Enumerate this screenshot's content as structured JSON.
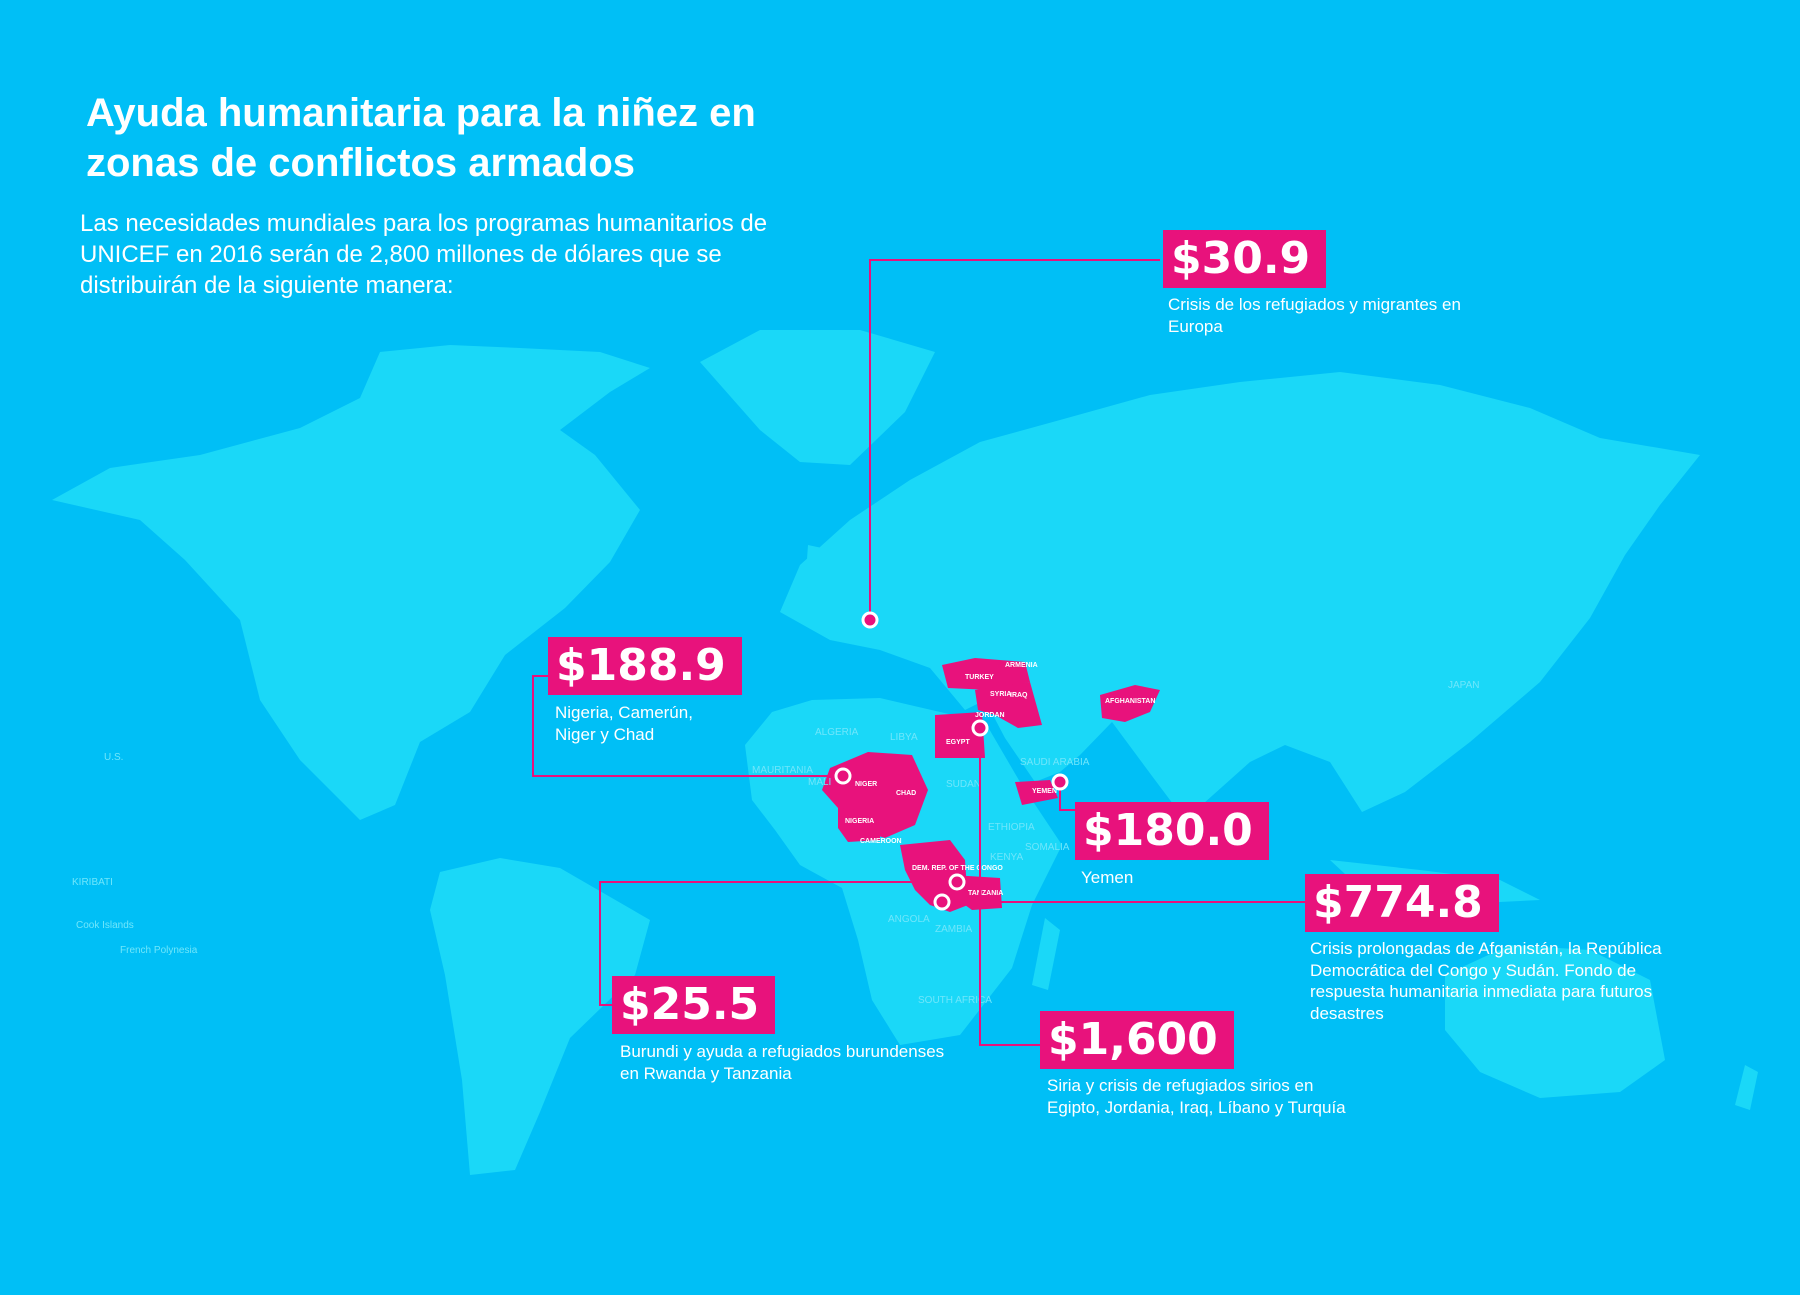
{
  "title": "Ayuda humanitaria para la niñez en zonas de conflictos armados",
  "subtitle": "Las necesidades mundiales para los programas humanitarios de UNICEF en 2016 serán de 2,800 millones de dólares que se distribuirán de la siguiente manera:",
  "colors": {
    "background": "#00bff6",
    "land": "#1ad8f8",
    "highlight": "#e8127c",
    "text": "#ffffff"
  },
  "callouts": [
    {
      "amount": "$30.9",
      "description": "Crisis de los refugiados y migrantes en Europa"
    },
    {
      "amount": "$188.9",
      "description": "Nigeria, Camerún, Niger y Chad"
    },
    {
      "amount": "$180.0",
      "description": "Yemen"
    },
    {
      "amount": "$774.8",
      "description": "Crisis prolongadas de Afganistán, la República Democrática del Congo y Sudán. Fondo de respuesta humanitaria inmediata para futuros desastres"
    },
    {
      "amount": "$25.5",
      "description": "Burundi y ayuda a refugiados burundenses en Rwanda y Tanzania"
    },
    {
      "amount": "$1,600",
      "description": "Siria y crisis de refugiados sirios en Egipto, Jordania, Iraq, Líbano y Turquía"
    }
  ],
  "map_labels": {
    "turkey": "TURKEY",
    "armenia": "ARMENIA",
    "syria": "SYRIA",
    "iraq": "IRAQ",
    "jordan": "JORDAN",
    "egypt": "EGYPT",
    "afghanistan": "AFGHANISTAN",
    "yemen": "YEMEN",
    "niger": "NIGER",
    "chad": "CHAD",
    "nigeria": "NIGERIA",
    "cameroon": "CAMEROON",
    "drc": "DEM. REP. OF THE CONGO",
    "tanzania": "TANZANIA",
    "algeria": "ALGERIA",
    "libya": "LIBYA",
    "sudan": "SUDAN",
    "saudi_arabia": "SAUDI ARABIA",
    "ethiopia": "ETHIOPIA",
    "kenya": "KENYA",
    "somalia": "SOMALIA",
    "angola": "ANGOLA",
    "zambia": "ZAMBIA",
    "south_africa": "SOUTH AFRICA",
    "mali": "MALI",
    "mauritania": "MAURITANIA",
    "japan": "JAPAN",
    "kiribati": "KIRIBATI",
    "cook_islands": "Cook Islands",
    "french_polynesia": "French Polynesia",
    "us": "U.S."
  }
}
